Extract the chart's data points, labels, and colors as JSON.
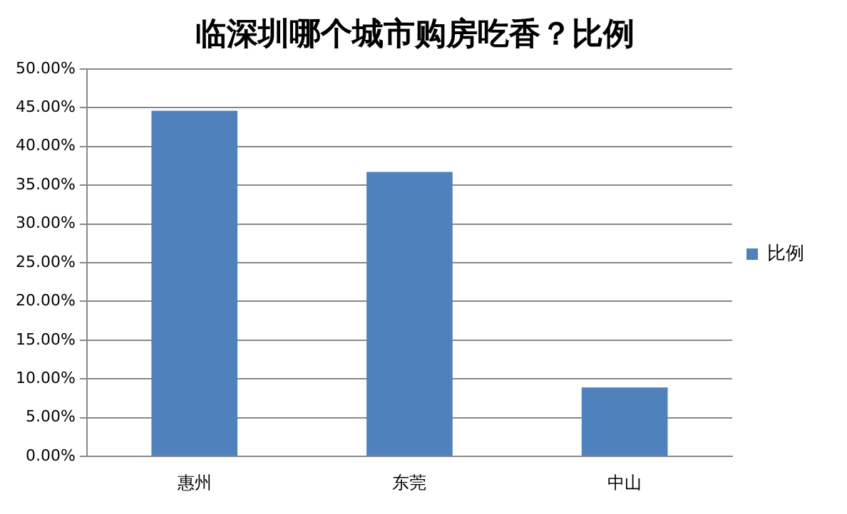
{
  "chart_data": {
    "type": "bar",
    "title": "临深圳哪个城市购房吃香？比例",
    "categories": [
      "惠州",
      "东莞",
      "中山"
    ],
    "series": [
      {
        "name": "比例",
        "color": "#4f81bd",
        "values": [
          44.6,
          36.7,
          8.9
        ]
      }
    ],
    "ylim": [
      0,
      50
    ],
    "yticks": [
      {
        "value": 0,
        "label": "0.00%"
      },
      {
        "value": 5,
        "label": "5.00%"
      },
      {
        "value": 10,
        "label": "10.00%"
      },
      {
        "value": 15,
        "label": "15.00%"
      },
      {
        "value": 20,
        "label": "20.00%"
      },
      {
        "value": 25,
        "label": "25.00%"
      },
      {
        "value": 30,
        "label": "30.00%"
      },
      {
        "value": 35,
        "label": "35.00%"
      },
      {
        "value": 40,
        "label": "40.00%"
      },
      {
        "value": 45,
        "label": "45.00%"
      },
      {
        "value": 50,
        "label": "50.00%"
      }
    ],
    "grid": "y",
    "legend": "right"
  }
}
